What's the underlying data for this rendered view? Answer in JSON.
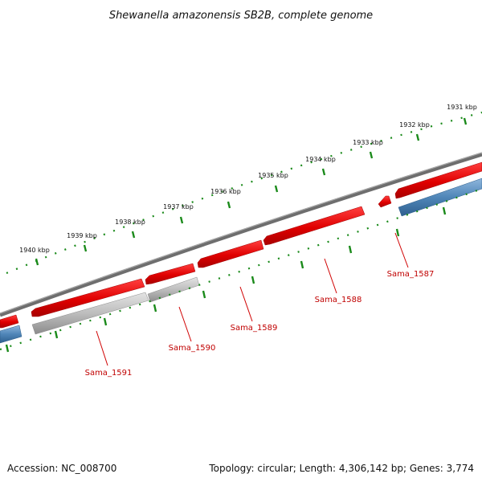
{
  "title": "Shewanella amazonensis SB2B, complete genome",
  "footer": {
    "accession": "Accession: NC_008700",
    "summary": "Topology: circular; Length: 4,306,142 bp; Genes: 3,774"
  },
  "colors": {
    "backbone": "#7a7a7a",
    "forward_cds": "#e00000",
    "reverse_cds": "#4f86b8",
    "rna": "#b0b0b0",
    "tick": "#1a8a1a",
    "label": "#c00000"
  },
  "kbp_labels": [
    "1931 kbp",
    "1932 kbp",
    "1933 kbp",
    "1934 kbp",
    "1935 kbp",
    "1936 kbp",
    "1937 kbp",
    "1938 kbp",
    "1939 kbp",
    "1940 kbp"
  ],
  "gene_labels": [
    "Sama_1587",
    "Sama_1588",
    "Sama_1589",
    "Sama_1590",
    "Sama_1591"
  ]
}
